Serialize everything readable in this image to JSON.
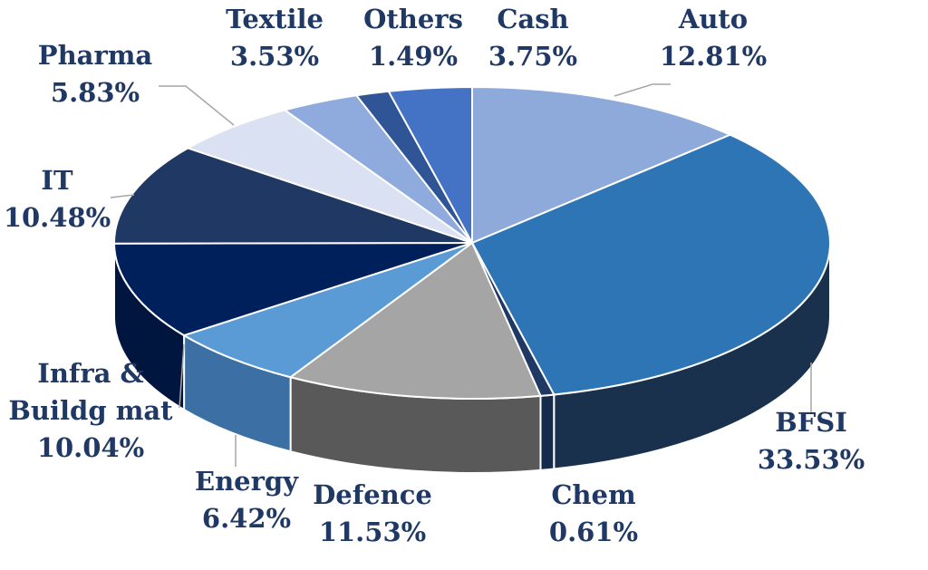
{
  "chart_data": {
    "type": "pie",
    "title": "",
    "variant": "3d-pie",
    "legend": "none",
    "slices": [
      {
        "category": "Auto",
        "label_lines": [
          "Auto"
        ],
        "value": 12.81,
        "value_label": "12.81%",
        "color": "#8eaadb",
        "side_color": "#6f8fc7"
      },
      {
        "category": "BFSI",
        "label_lines": [
          "BFSI"
        ],
        "value": 33.53,
        "value_label": "33.53%",
        "color": "#2e75b6",
        "side_color": "#1a314d"
      },
      {
        "category": "Chem",
        "label_lines": [
          "Chem"
        ],
        "value": 0.61,
        "value_label": "0.61%",
        "color": "#1f3864",
        "side_color": "#162a4b"
      },
      {
        "category": "Defence",
        "label_lines": [
          "Defence"
        ],
        "value": 11.53,
        "value_label": "11.53%",
        "color": "#a5a5a5",
        "side_color": "#595959"
      },
      {
        "category": "Energy",
        "label_lines": [
          "Energy"
        ],
        "value": 6.42,
        "value_label": "6.42%",
        "color": "#5b9bd5",
        "side_color": "#3c6fa3"
      },
      {
        "category": "Infra & Buildg mat",
        "label_lines": [
          "Infra &",
          "Buildg mat"
        ],
        "value": 10.04,
        "value_label": "10.04%",
        "color": "#00205b",
        "side_color": "#00163f"
      },
      {
        "category": "IT",
        "label_lines": [
          "IT"
        ],
        "value": 10.48,
        "value_label": "10.48%",
        "color": "#203864",
        "side_color": "#16284a"
      },
      {
        "category": "Pharma",
        "label_lines": [
          "Pharma"
        ],
        "value": 5.83,
        "value_label": "5.83%",
        "color": "#d9e1f2",
        "side_color": "#aab5cc"
      },
      {
        "category": "Textile",
        "label_lines": [
          "Textile"
        ],
        "value": 3.53,
        "value_label": "3.53%",
        "color": "#8faadc",
        "side_color": "#6d87b6"
      },
      {
        "category": "Others",
        "label_lines": [
          "Others"
        ],
        "value": 1.49,
        "value_label": "1.49%",
        "color": "#2f5597",
        "side_color": "#213d6d"
      },
      {
        "category": "Cash",
        "label_lines": [
          "Cash"
        ],
        "value": 3.75,
        "value_label": "3.75%",
        "color": "#4472c4",
        "side_color": "#2f5597"
      }
    ]
  }
}
